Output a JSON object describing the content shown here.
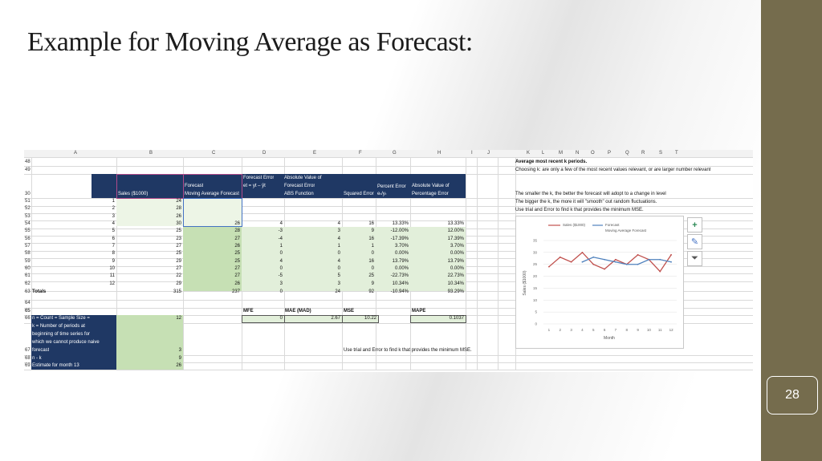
{
  "slide": {
    "title": "Example for Moving Average as Forecast:",
    "page_number": "28"
  },
  "sheet": {
    "column_letters": [
      "A",
      "B",
      "C",
      "D",
      "E",
      "F",
      "G",
      "H",
      "I",
      "J",
      "K",
      "L",
      "M",
      "N",
      "O",
      "P",
      "Q",
      "R",
      "S",
      "T"
    ],
    "header": {
      "row_num": "30",
      "month": "Month",
      "sales": "Sales ($1000)",
      "forecast_l1": "Forecast",
      "forecast_l2": "Moving Average Forecast",
      "fe_l1": "Forecast Error",
      "fe_l2": "et = yt – ŷt",
      "abs_l1": "Absolute Value of",
      "abs_l2": "Forecast Error",
      "abs_l3": "ABS Function",
      "sq": "Squared Error",
      "pe_l1": "Percent Error",
      "pe_l2": "eₜ/yₜ",
      "apv_l1": "Absolute Value of",
      "apv_l2": "Percentage Error"
    },
    "rows": [
      {
        "n": "51",
        "month": "1",
        "sales": "24",
        "fc": "",
        "err": "",
        "abs": "",
        "sq": "",
        "pct": "",
        "apct": ""
      },
      {
        "n": "52",
        "month": "2",
        "sales": "28",
        "fc": "",
        "err": "",
        "abs": "",
        "sq": "",
        "pct": "",
        "apct": ""
      },
      {
        "n": "53",
        "month": "3",
        "sales": "26",
        "fc": "",
        "err": "",
        "abs": "",
        "sq": "",
        "pct": "",
        "apct": ""
      },
      {
        "n": "54",
        "month": "4",
        "sales": "30",
        "fc": "26",
        "err": "4",
        "abs": "4",
        "sq": "16",
        "pct": "13.33%",
        "apct": "13.33%"
      },
      {
        "n": "55",
        "month": "5",
        "sales": "25",
        "fc": "28",
        "err": "-3",
        "abs": "3",
        "sq": "9",
        "pct": "-12.00%",
        "apct": "12.00%"
      },
      {
        "n": "56",
        "month": "6",
        "sales": "23",
        "fc": "27",
        "err": "-4",
        "abs": "4",
        "sq": "16",
        "pct": "-17.39%",
        "apct": "17.39%"
      },
      {
        "n": "57",
        "month": "7",
        "sales": "27",
        "fc": "26",
        "err": "1",
        "abs": "1",
        "sq": "1",
        "pct": "3.70%",
        "apct": "3.70%"
      },
      {
        "n": "58",
        "month": "8",
        "sales": "25",
        "fc": "25",
        "err": "0",
        "abs": "0",
        "sq": "0",
        "pct": "0.00%",
        "apct": "0.00%"
      },
      {
        "n": "59",
        "month": "9",
        "sales": "29",
        "fc": "25",
        "err": "4",
        "abs": "4",
        "sq": "16",
        "pct": "13.79%",
        "apct": "13.79%"
      },
      {
        "n": "60",
        "month": "10",
        "sales": "27",
        "fc": "27",
        "err": "0",
        "abs": "0",
        "sq": "0",
        "pct": "0.00%",
        "apct": "0.00%"
      },
      {
        "n": "61",
        "month": "11",
        "sales": "22",
        "fc": "27",
        "err": "-5",
        "abs": "5",
        "sq": "25",
        "pct": "-22.73%",
        "apct": "22.73%"
      },
      {
        "n": "62",
        "month": "12",
        "sales": "29",
        "fc": "26",
        "err": "3",
        "abs": "3",
        "sq": "9",
        "pct": "10.34%",
        "apct": "10.34%"
      }
    ],
    "totals": {
      "n": "63",
      "label": "Totals",
      "sales": "315",
      "fc": "237",
      "err": "0",
      "abs": "24",
      "sq": "92",
      "pct": "-10.94%",
      "apct": "93.29%"
    },
    "top_rows": [
      "48",
      "49"
    ],
    "empty_rows": [
      "64",
      "65"
    ],
    "metrics": {
      "row_label_n": "65",
      "mfe_label": "MFE",
      "mae_label": "MAE (MAD)",
      "mse_label": "MSE",
      "mape_label": "MAPE",
      "row_value_n": "66",
      "mfe": "0",
      "mae": "2.67",
      "mse": "10.22",
      "mape": "0.1037"
    },
    "params": {
      "count_label": "n = Count = Sample Size =",
      "count_value": "12",
      "k_label_1": "k = Number of periods at",
      "k_label_2": "beginning of time series for",
      "k_label_3": "which we cannot produce naive",
      "k_label_4": "forecast",
      "k_row": "67",
      "k_value": "3",
      "nk_row": "68",
      "nk_label": "n - k",
      "nk_value": "9",
      "est_row": "69",
      "est_label": "Estimate for month 13",
      "est_value": "26"
    },
    "notes": {
      "trial_error": "Use trial and Error to find k that provides the minimum MSE.",
      "avg_recent": "Average most recent k periods.",
      "choosing_k": "Choosing k: are only a few of the most recent values relevant, or are larger number relevant",
      "smaller_k": "The smaller the k, the better the forecast will adopt to a change in level",
      "bigger_k": "The bigger the k, the more it will \"smooth\" out random fluctuations.",
      "use_trial": "Use trial and Error to find k that provides the minimum MSE."
    }
  },
  "chart_data": {
    "type": "line",
    "title": "",
    "xlabel": "Month",
    "ylabel": "Sales ($1000)",
    "x": [
      1,
      2,
      3,
      4,
      5,
      6,
      7,
      8,
      9,
      10,
      11,
      12
    ],
    "ylim": [
      0,
      35
    ],
    "yticks": [
      0,
      5,
      10,
      15,
      20,
      25,
      30,
      35
    ],
    "series": [
      {
        "name": "Sales ($1000)",
        "color": "#c0504d",
        "values": [
          24,
          28,
          26,
          30,
          25,
          23,
          27,
          25,
          29,
          27,
          22,
          29
        ]
      },
      {
        "name": "Forecast Moving Average Forecast",
        "color": "#4f81bd",
        "values": [
          null,
          null,
          null,
          26,
          28,
          27,
          26,
          25,
          25,
          27,
          27,
          26
        ]
      }
    ],
    "legend_labels": [
      "Sales ($1000)",
      "Forecast",
      "Moving Average Forecast"
    ],
    "legend": "top"
  },
  "chart_tools": {
    "add": "+",
    "style": "✎",
    "filter": "⏷"
  }
}
